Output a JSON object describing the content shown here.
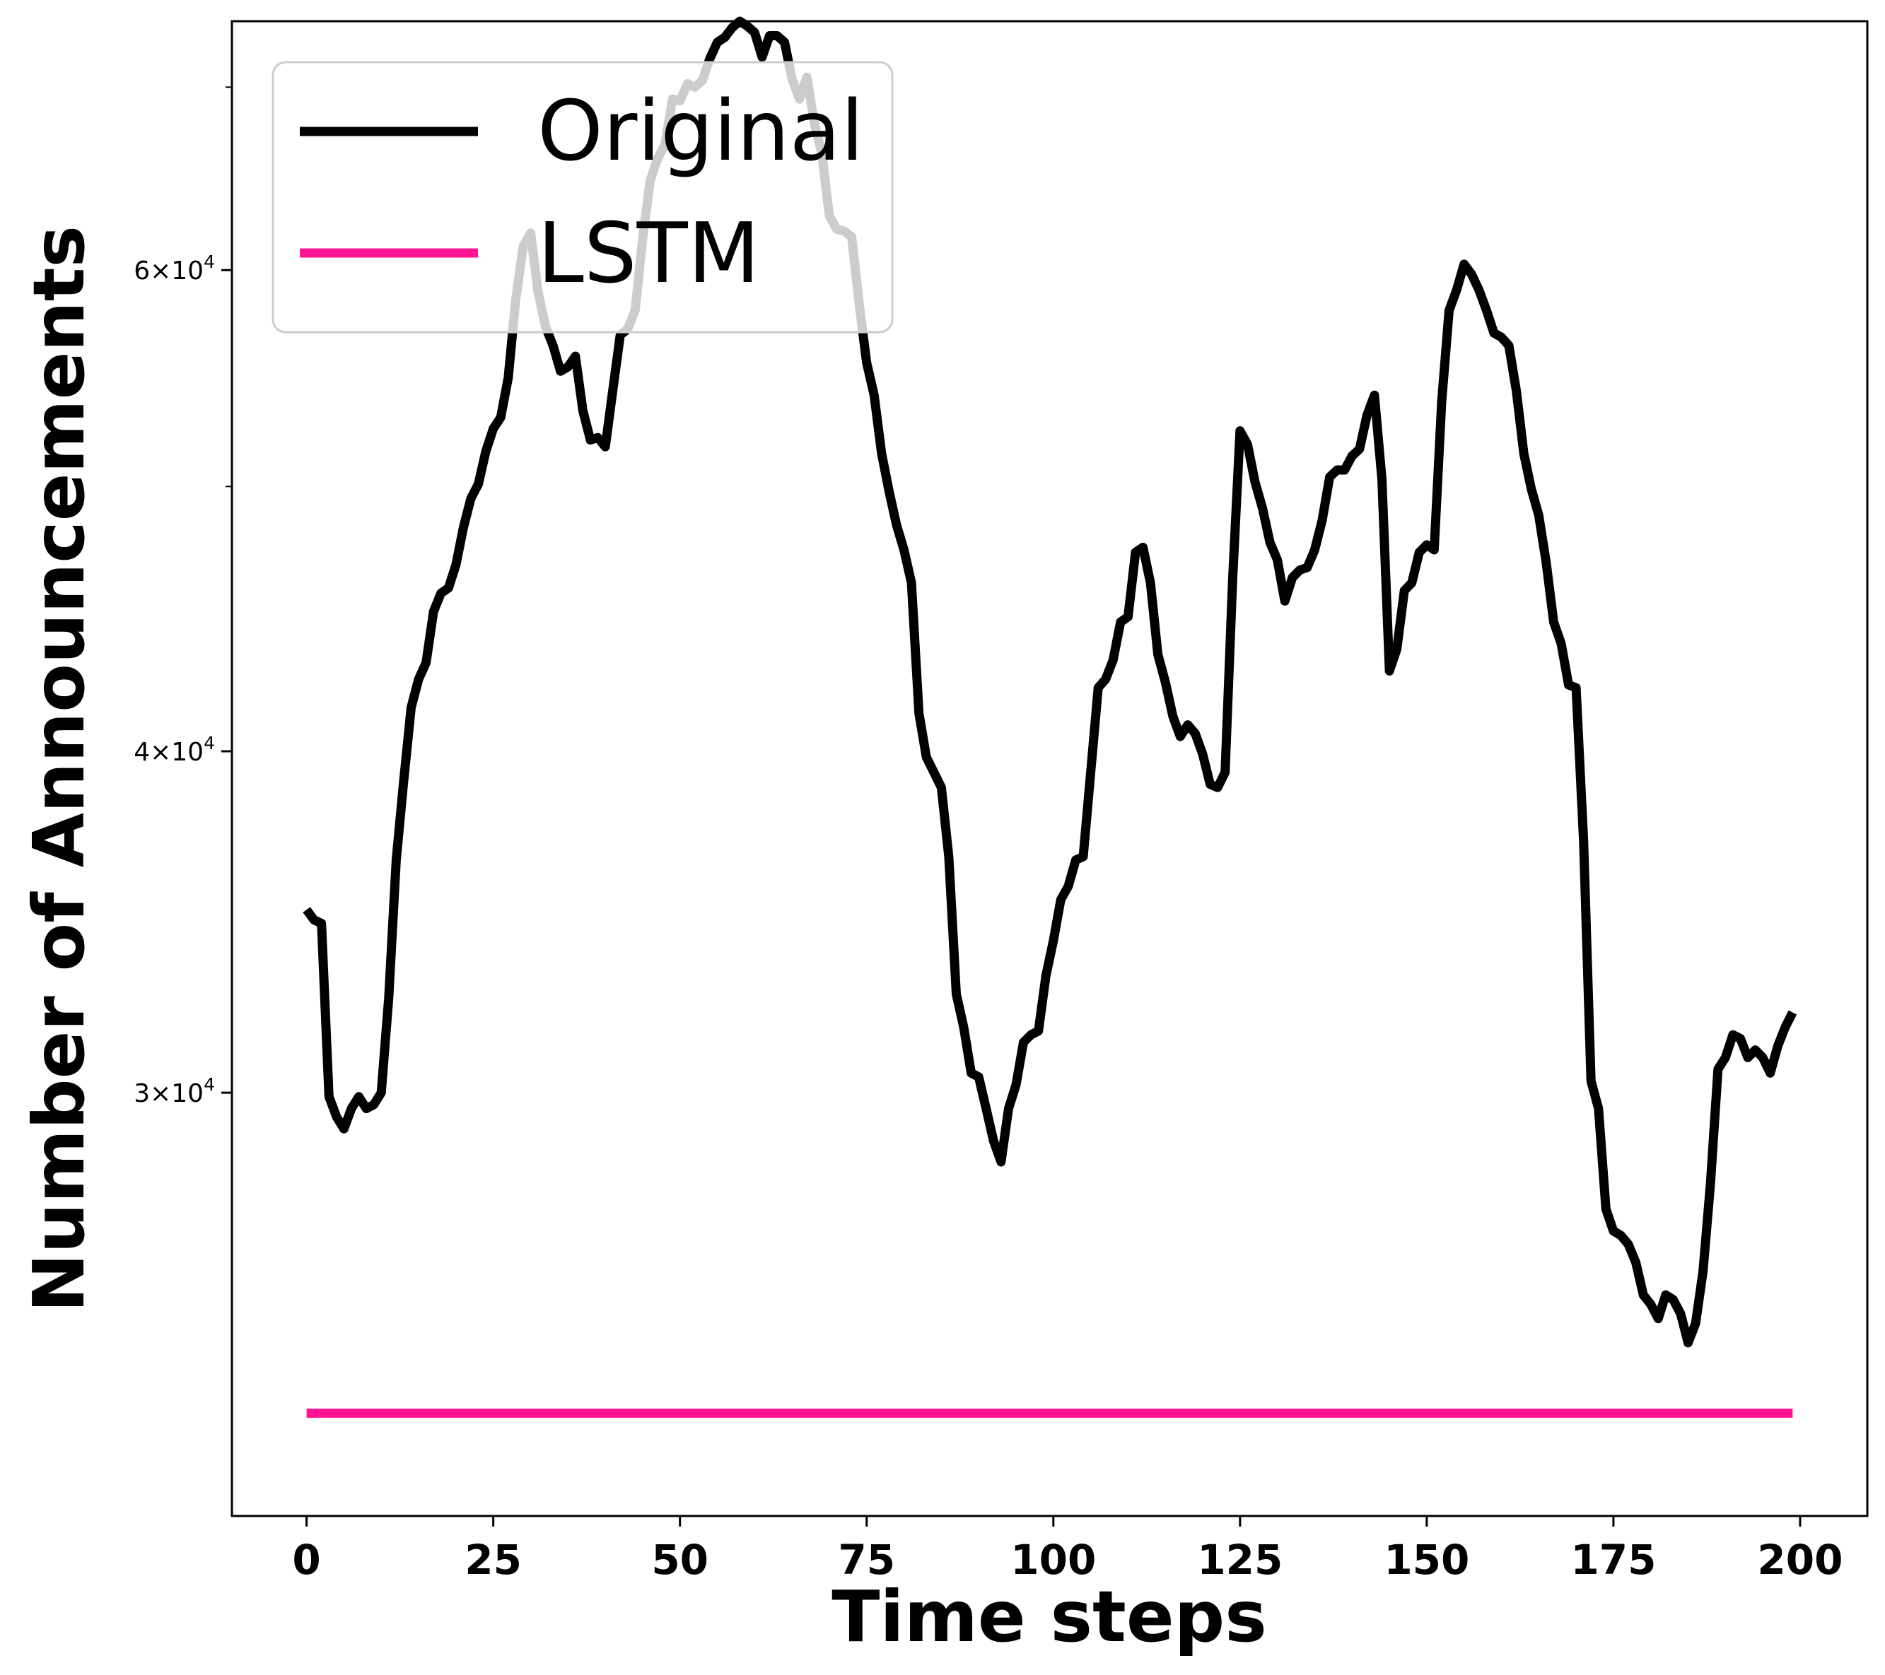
{
  "chart_data": {
    "type": "line",
    "xlabel": "Time steps",
    "ylabel": "Number of Announcements",
    "xlim": [
      -10,
      209
    ],
    "ylim": [
      21000,
      74000
    ],
    "y_scale": "log",
    "grid": false,
    "legend_position": "top-left",
    "x_ticks": [
      0,
      25,
      50,
      75,
      100,
      125,
      150,
      175,
      200
    ],
    "x_tick_labels": [
      "0",
      "25",
      "50",
      "75",
      "100",
      "125",
      "150",
      "175",
      "200"
    ],
    "y_major_ticks": [
      30000,
      40000,
      60000
    ],
    "y_major_tick_labels": [
      {
        "base": "3×10",
        "exp": "4"
      },
      {
        "base": "4×10",
        "exp": "4"
      },
      {
        "base": "6×10",
        "exp": "4"
      }
    ],
    "y_minor_ticks": [
      50000,
      70000
    ],
    "series": [
      {
        "name": "Original",
        "color": "#000000",
        "x": [
          0,
          1,
          2,
          3,
          4,
          5,
          6,
          7,
          8,
          9,
          10,
          11,
          12,
          13,
          14,
          15,
          16,
          17,
          18,
          19,
          20,
          21,
          22,
          23,
          24,
          25,
          26,
          27,
          28,
          29,
          30,
          31,
          32,
          33,
          34,
          35,
          36,
          37,
          38,
          39,
          40,
          41,
          42,
          43,
          44,
          45,
          46,
          47,
          48,
          49,
          50,
          51,
          52,
          53,
          54,
          55,
          56,
          57,
          58,
          59,
          60,
          61,
          62,
          63,
          64,
          65,
          66,
          67,
          68,
          69,
          70,
          71,
          72,
          73,
          74,
          75,
          76,
          77,
          78,
          79,
          80,
          81,
          82,
          83,
          84,
          85,
          86,
          87,
          88,
          89,
          90,
          91,
          92,
          93,
          94,
          95,
          96,
          97,
          98,
          99,
          100,
          101,
          102,
          103,
          104,
          105,
          106,
          107,
          108,
          109,
          110,
          111,
          112,
          113,
          114,
          115,
          116,
          117,
          118,
          119,
          120,
          121,
          122,
          123,
          124,
          125,
          126,
          127,
          128,
          129,
          130,
          131,
          132,
          133,
          134,
          135,
          136,
          137,
          138,
          139,
          140,
          141,
          142,
          143,
          144,
          145,
          146,
          147,
          148,
          149,
          150,
          151,
          152,
          153,
          154,
          155,
          156,
          157,
          158,
          159,
          160,
          161,
          162,
          163,
          164,
          165,
          166,
          167,
          168,
          169,
          170,
          171,
          172,
          173,
          174,
          175,
          176,
          177,
          178,
          179,
          180,
          181,
          182,
          183,
          184,
          185,
          186,
          187,
          188,
          189,
          190,
          191,
          192,
          193,
          194,
          195,
          196,
          197,
          198,
          199
        ],
        "values": [
          35000,
          34700,
          34600,
          29900,
          29400,
          29100,
          29600,
          29900,
          29600,
          29700,
          30000,
          32500,
          36500,
          39000,
          41500,
          42500,
          43100,
          45000,
          45700,
          45900,
          46800,
          48300,
          49500,
          50100,
          51500,
          52500,
          53000,
          54800,
          58500,
          61200,
          61900,
          58900,
          57200,
          56300,
          55100,
          55300,
          55800,
          53300,
          52000,
          52100,
          51700,
          54200,
          56800,
          57100,
          58000,
          61600,
          64700,
          65900,
          66700,
          69300,
          69200,
          70200,
          70000,
          70400,
          71700,
          72700,
          73000,
          73600,
          74000,
          73700,
          73300,
          71800,
          73100,
          73100,
          72700,
          70500,
          69300,
          70600,
          67900,
          66200,
          62800,
          62100,
          62000,
          61700,
          58300,
          55500,
          54000,
          51400,
          49800,
          48400,
          47400,
          46100,
          41300,
          39800,
          39300,
          38800,
          36600,
          32600,
          31700,
          30500,
          30400,
          29600,
          28800,
          28300,
          29600,
          30200,
          31300,
          31500,
          31600,
          33100,
          34100,
          35300,
          35700,
          36500,
          36600,
          39300,
          42200,
          42500,
          43200,
          44600,
          44800,
          47300,
          47500,
          46100,
          43400,
          42400,
          41200,
          40500,
          40900,
          40600,
          39900,
          38900,
          38800,
          39300,
          46200,
          52400,
          51800,
          50200,
          49100,
          47700,
          47000,
          45400,
          46300,
          46600,
          46700,
          47400,
          48600,
          50400,
          50700,
          50700,
          51300,
          51600,
          53100,
          54000,
          50300,
          42800,
          43600,
          45800,
          46100,
          47300,
          47600,
          47400,
          53700,
          58000,
          59000,
          60300,
          59800,
          59000,
          58000,
          56900,
          56700,
          56300,
          54200,
          51400,
          49900,
          48800,
          46900,
          44600,
          43800,
          42300,
          42200,
          37100,
          30300,
          29600,
          27200,
          26700,
          26600,
          26400,
          26000,
          25300,
          25100,
          24800,
          25300,
          25200,
          24900,
          24300,
          24700,
          25800,
          27800,
          30600,
          30900,
          31500,
          31400,
          30900,
          31100,
          30900,
          30500,
          31200,
          31700,
          32100
        ]
      },
      {
        "name": "LSTM",
        "color": "#ff1493",
        "x": [
          0,
          199
        ],
        "values": [
          22900,
          22900
        ]
      }
    ]
  }
}
